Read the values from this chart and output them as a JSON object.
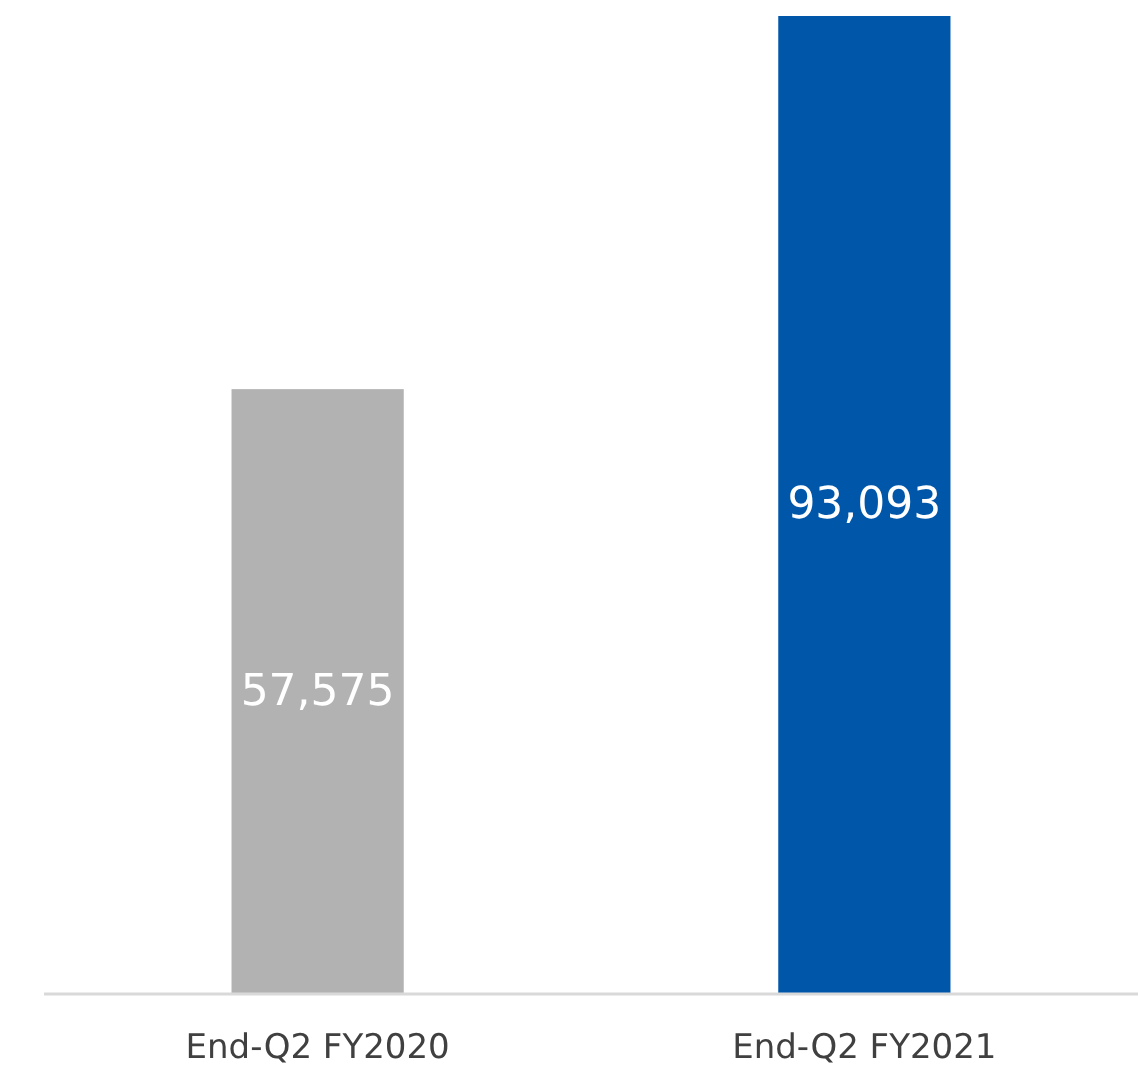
{
  "chart_data": {
    "type": "bar",
    "categories": [
      "End-Q2 FY2020",
      "End-Q2 FY2021"
    ],
    "values": [
      57575,
      93093
    ],
    "colors": [
      "#b2b2b2",
      "#0057aa"
    ],
    "value_labels": [
      "57,575",
      "93,093"
    ]
  }
}
